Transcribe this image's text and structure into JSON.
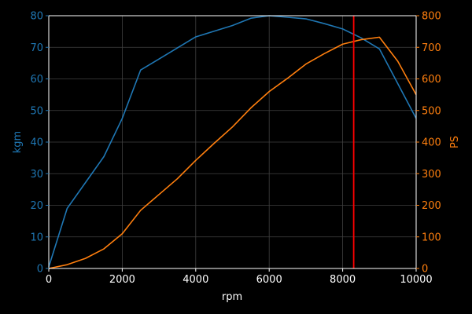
{
  "chart_data": {
    "type": "line",
    "xlabel": "rpm",
    "ylabel_left": "kgm",
    "ylabel_right": "PS",
    "xlim": [
      0,
      10000
    ],
    "ylim_left": [
      0,
      80
    ],
    "ylim_right": [
      0,
      800
    ],
    "x_ticks": [
      0,
      2000,
      4000,
      6000,
      8000,
      10000
    ],
    "y_ticks_left": [
      0,
      10,
      20,
      30,
      40,
      50,
      60,
      70,
      80
    ],
    "y_ticks_right": [
      0,
      100,
      200,
      300,
      400,
      500,
      600,
      700,
      800
    ],
    "grid": true,
    "colors": {
      "background": "#000000",
      "frame": "#ffffff",
      "grid": "#404040",
      "torque": "#1f77b4",
      "power": "#ff7f0e",
      "marker": "#ff0000",
      "label": "#ffffff"
    },
    "series": [
      {
        "axis": "left",
        "color": "#1f77b4",
        "x": [
          0,
          500,
          1000,
          1500,
          2000,
          2500,
          3000,
          3500,
          4000,
          4500,
          5000,
          5500,
          6000,
          6500,
          7000,
          7500,
          8000,
          8500,
          9000,
          9500,
          10000
        ],
        "y": [
          0.5,
          19,
          27.2,
          35.4,
          47.5,
          62.8,
          66.3,
          69.8,
          73.3,
          75.1,
          76.9,
          79.2,
          80,
          79.5,
          79,
          77.5,
          75.8,
          73,
          69.5,
          58.5,
          47.5
        ]
      },
      {
        "axis": "right",
        "color": "#ff7f0e",
        "x": [
          0,
          500,
          1000,
          1500,
          2000,
          2500,
          3000,
          3500,
          4000,
          4500,
          5000,
          5500,
          6000,
          6500,
          7000,
          7500,
          8000,
          8500,
          9000,
          9500,
          10000
        ],
        "y": [
          0,
          12,
          32,
          62,
          110,
          184,
          234,
          284,
          342,
          396,
          448,
          508,
          560,
          602,
          647,
          680,
          710,
          724,
          732,
          656,
          550
        ]
      }
    ],
    "vline": {
      "x": 8300,
      "color": "#ff0000"
    }
  }
}
